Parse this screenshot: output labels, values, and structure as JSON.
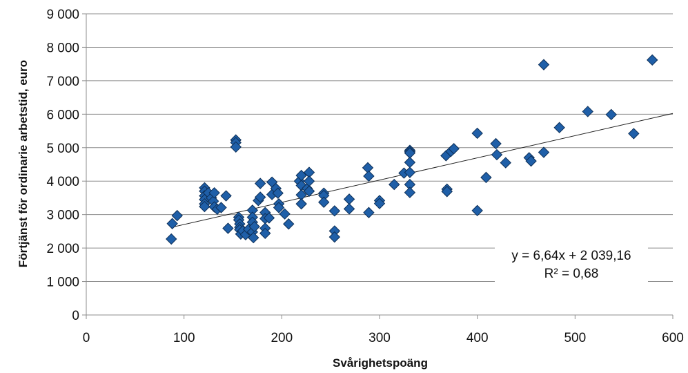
{
  "chart_data": {
    "type": "scatter",
    "title": "",
    "xlabel": "Svårighetspoäng",
    "ylabel": "Förtjänst för ordinarie arbetstid, euro",
    "xlim": [
      0,
      600
    ],
    "ylim": [
      0,
      9000
    ],
    "x_ticks": [
      0,
      100,
      200,
      300,
      400,
      500,
      600
    ],
    "x_tick_labels": [
      "0",
      "100",
      "200",
      "300",
      "400",
      "500",
      "600"
    ],
    "y_ticks": [
      0,
      1000,
      2000,
      3000,
      4000,
      5000,
      6000,
      7000,
      8000,
      9000
    ],
    "y_tick_labels": [
      "0",
      "1 000",
      "2 000",
      "3 000",
      "4 000",
      "5 000",
      "6 000",
      "7 000",
      "8 000",
      "9 000"
    ],
    "grid": "horizontal",
    "legend": "none",
    "series": [
      {
        "color": "#1f5fa8",
        "marker": "diamond",
        "points": [
          [
            87,
            2270
          ],
          [
            88,
            2730
          ],
          [
            93,
            2970
          ],
          [
            121,
            3800
          ],
          [
            121,
            3700
          ],
          [
            121,
            3560
          ],
          [
            121,
            3450
          ],
          [
            121,
            3320
          ],
          [
            121,
            3240
          ],
          [
            125,
            3650
          ],
          [
            128,
            3500
          ],
          [
            130,
            3400
          ],
          [
            131,
            3650
          ],
          [
            131,
            3230
          ],
          [
            134,
            3160
          ],
          [
            138,
            3210
          ],
          [
            143,
            3560
          ],
          [
            145,
            2590
          ],
          [
            153,
            5230
          ],
          [
            153,
            5150
          ],
          [
            153,
            5020
          ],
          [
            156,
            2920
          ],
          [
            156,
            2840
          ],
          [
            157,
            2720
          ],
          [
            157,
            2620
          ],
          [
            157,
            2550
          ],
          [
            158,
            2420
          ],
          [
            160,
            2510
          ],
          [
            163,
            2400
          ],
          [
            166,
            2560
          ],
          [
            170,
            3130
          ],
          [
            170,
            2920
          ],
          [
            170,
            2770
          ],
          [
            170,
            2480
          ],
          [
            171,
            2310
          ],
          [
            172,
            2640
          ],
          [
            176,
            3420
          ],
          [
            178,
            3520
          ],
          [
            178,
            3930
          ],
          [
            183,
            3060
          ],
          [
            183,
            2880
          ],
          [
            183,
            2590
          ],
          [
            183,
            2440
          ],
          [
            187,
            2900
          ],
          [
            190,
            3970
          ],
          [
            190,
            3600
          ],
          [
            194,
            3780
          ],
          [
            196,
            3640
          ],
          [
            197,
            3320
          ],
          [
            197,
            3210
          ],
          [
            203,
            3020
          ],
          [
            207,
            2720
          ],
          [
            218,
            4000
          ],
          [
            220,
            4170
          ],
          [
            220,
            3870
          ],
          [
            220,
            3590
          ],
          [
            220,
            3320
          ],
          [
            226,
            3780
          ],
          [
            228,
            4260
          ],
          [
            228,
            4000
          ],
          [
            228,
            3700
          ],
          [
            243,
            3640
          ],
          [
            243,
            3570
          ],
          [
            243,
            3370
          ],
          [
            254,
            3110
          ],
          [
            254,
            2510
          ],
          [
            254,
            2330
          ],
          [
            269,
            3460
          ],
          [
            269,
            3170
          ],
          [
            288,
            4400
          ],
          [
            289,
            4150
          ],
          [
            289,
            3060
          ],
          [
            300,
            3420
          ],
          [
            300,
            3330
          ],
          [
            315,
            3900
          ],
          [
            325,
            4240
          ],
          [
            331,
            4920
          ],
          [
            331,
            4880
          ],
          [
            331,
            4840
          ],
          [
            331,
            4560
          ],
          [
            331,
            4260
          ],
          [
            331,
            3900
          ],
          [
            331,
            3660
          ],
          [
            368,
            4760
          ],
          [
            369,
            3760
          ],
          [
            369,
            3690
          ],
          [
            373,
            4890
          ],
          [
            376,
            4970
          ],
          [
            400,
            5430
          ],
          [
            400,
            3120
          ],
          [
            409,
            4110
          ],
          [
            419,
            5120
          ],
          [
            420,
            4790
          ],
          [
            429,
            4550
          ],
          [
            453,
            4700
          ],
          [
            455,
            4600
          ],
          [
            468,
            7480
          ],
          [
            468,
            4860
          ],
          [
            484,
            5600
          ],
          [
            513,
            6080
          ],
          [
            537,
            5990
          ],
          [
            560,
            5420
          ],
          [
            579,
            7620
          ]
        ]
      }
    ],
    "trendline": {
      "type": "linear",
      "slope": 6.64,
      "intercept": 2039.16,
      "x_range": [
        87,
        600
      ],
      "equation_label": "y = 6,64x + 2 039,16",
      "r2_label": "R² = 0,68"
    }
  }
}
